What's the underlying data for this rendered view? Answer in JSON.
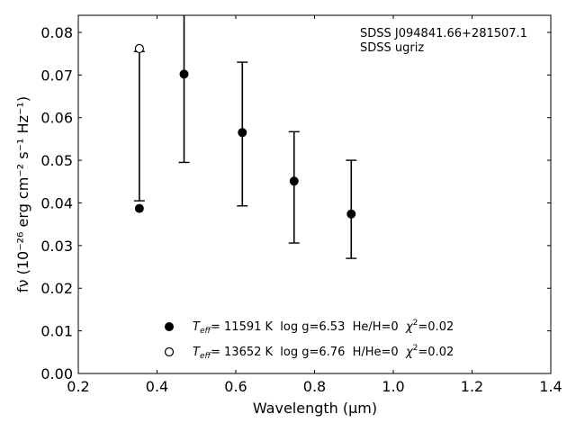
{
  "chart_data": {
    "type": "scatter",
    "annotation": [
      "SDSS J094841.66+281507.1",
      "SDSS ugriz"
    ],
    "xlabel": "Wavelength (μm)",
    "ylabel": "fν (10⁻²⁶ erg cm⁻² s⁻¹ Hz⁻¹)",
    "xlim": [
      0.2,
      1.4
    ],
    "ylim": [
      0.0,
      0.084
    ],
    "xticks": [
      0.2,
      0.4,
      0.6,
      0.8,
      1.0,
      1.2,
      1.4
    ],
    "xtick_labels": [
      "0.2",
      "0.4",
      "0.6",
      "0.8",
      "1.0",
      "1.2",
      "1.4"
    ],
    "yticks": [
      0.0,
      0.01,
      0.02,
      0.03,
      0.04,
      0.05,
      0.06,
      0.07,
      0.08
    ],
    "ytick_labels": [
      "0.00",
      "0.01",
      "0.02",
      "0.03",
      "0.04",
      "0.05",
      "0.06",
      "0.07",
      "0.08"
    ],
    "grid": false,
    "legend_position": "bottom-center",
    "observed": {
      "marker": "errorbar",
      "x": [
        0.3551,
        0.4686,
        0.6166,
        0.748,
        0.8932
      ],
      "y": [
        0.0755,
        0.07,
        0.0562,
        0.0437,
        0.0385
      ],
      "yerr_low": [
        0.0405,
        0.0495,
        0.0393,
        0.0306,
        0.027
      ],
      "yerr_high": [
        0.0755,
        0.09,
        0.073,
        0.0567,
        0.05
      ]
    },
    "series": [
      {
        "name": "T_eff= 11591 K  log g=6.53  He/H=0  χ²=0.02",
        "legend_label": {
          "t": "T",
          "sub": "eff",
          "rest": "= 11591 K  log g=6.53  He/H=0  ",
          "chi": "χ",
          "sup": "2",
          "tail": "=0.02"
        },
        "marker": "filled-circle",
        "x": [
          0.3551,
          0.4686,
          0.6166,
          0.748,
          0.8932
        ],
        "y": [
          0.0387,
          0.0702,
          0.0565,
          0.0451,
          0.0374
        ]
      },
      {
        "name": "T_eff= 13652 K  log g=6.76  H/He=0  χ²=0.02",
        "legend_label": {
          "t": "T",
          "sub": "eff",
          "rest": "= 13652 K  log g=6.76  H/He=0  ",
          "chi": "χ",
          "sup": "2",
          "tail": "=0.02"
        },
        "marker": "open-circle",
        "x": [
          0.3551
        ],
        "y": [
          0.0762
        ]
      }
    ],
    "colors": {
      "axes": "#000000",
      "markers": "#000000",
      "background": "#ffffff"
    }
  }
}
